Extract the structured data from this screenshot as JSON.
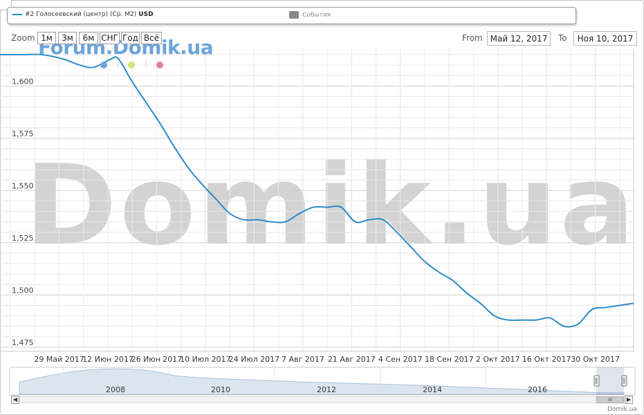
{
  "legend": {
    "series_name": "#2 Голосеевский (центр) (Ср. М2)",
    "series_unit": "USD",
    "events_label": "События"
  },
  "zoom": {
    "label": "Zoom",
    "buttons": [
      "1м",
      "3м",
      "6м",
      "СНГ",
      "Год",
      "Всё"
    ]
  },
  "range": {
    "from_label": "From",
    "from_value": "Май 12, 2017",
    "to_label": "To",
    "to_value": "Ноя 10, 2017"
  },
  "watermarks": {
    "forum": "Forum.Domik.ua",
    "big": "Domik.ua"
  },
  "credit": "Domik.ua",
  "colors": {
    "series": "#2a8ac6",
    "markers": [
      "#6fa8dc",
      "#d9e07a",
      "#e0849a"
    ]
  },
  "navigator": {
    "year_labels": [
      "2008",
      "2010",
      "2012",
      "2014",
      "2016"
    ]
  },
  "chart_data": {
    "type": "line",
    "title": "",
    "xlabel": "",
    "ylabel": "",
    "y_ticks": [
      1475,
      1500,
      1525,
      1550,
      1575,
      1600
    ],
    "y_tick_labels": [
      "1,475",
      "1,500",
      "1,525",
      "1,550",
      "1,575",
      "1,600"
    ],
    "ylim": [
      1473,
      1618
    ],
    "xlim": [
      "2017-05-12",
      "2017-11-10"
    ],
    "x_tick_dates": [
      "2017-05-29",
      "2017-06-12",
      "2017-06-26",
      "2017-07-10",
      "2017-07-24",
      "2017-08-07",
      "2017-08-21",
      "2017-09-04",
      "2017-09-18",
      "2017-10-02",
      "2017-10-16",
      "2017-10-30"
    ],
    "x_tick_labels": [
      "29 Май 2017",
      "12 Июн 2017",
      "26 Июн 2017",
      "10 Июл 2017",
      "24 Июл 2017",
      "7 Авг 2017",
      "21 Авг 2017",
      "4 Сен 2017",
      "18 Сен 2017",
      "2 Окт 2017",
      "16 Окт 2017",
      "30 Окт 2017"
    ],
    "grid": true,
    "series": [
      {
        "name": "#2 Голосеевский (центр) (Ср. М2)",
        "x": [
          "2017-05-12",
          "2017-05-18",
          "2017-05-24",
          "2017-05-30",
          "2017-06-04",
          "2017-06-08",
          "2017-06-13",
          "2017-06-15",
          "2017-06-19",
          "2017-06-23",
          "2017-06-27",
          "2017-07-01",
          "2017-07-05",
          "2017-07-09",
          "2017-07-13",
          "2017-07-17",
          "2017-07-21",
          "2017-07-25",
          "2017-07-29",
          "2017-08-02",
          "2017-08-06",
          "2017-08-10",
          "2017-08-14",
          "2017-08-18",
          "2017-08-22",
          "2017-08-26",
          "2017-08-30",
          "2017-09-03",
          "2017-09-07",
          "2017-09-11",
          "2017-09-15",
          "2017-09-19",
          "2017-09-23",
          "2017-09-27",
          "2017-10-01",
          "2017-10-05",
          "2017-10-09",
          "2017-10-13",
          "2017-10-17",
          "2017-10-21",
          "2017-10-25",
          "2017-10-29",
          "2017-11-02",
          "2017-11-06",
          "2017-11-10"
        ],
        "y": [
          1615,
          1615,
          1615,
          1613,
          1610,
          1609,
          1613,
          1613,
          1602,
          1592,
          1582,
          1571,
          1561,
          1553,
          1546,
          1539,
          1536,
          1536,
          1535,
          1535,
          1539,
          1542,
          1542,
          1542,
          1535,
          1536,
          1536,
          1530,
          1523,
          1516,
          1511,
          1507,
          1501,
          1496,
          1490,
          1488,
          1488,
          1488,
          1489,
          1485,
          1486,
          1493,
          1494,
          1495,
          1496
        ]
      }
    ]
  }
}
